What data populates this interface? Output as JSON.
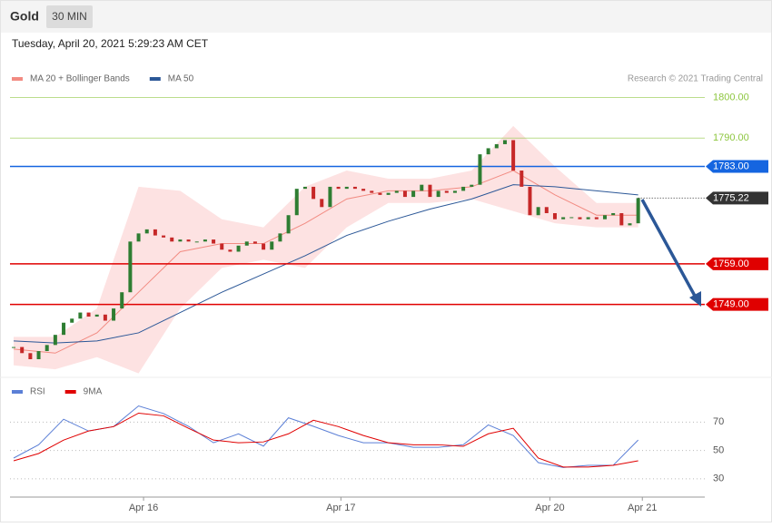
{
  "header": {
    "title": "Gold",
    "timeframe": "30 MIN",
    "datetime": "Tuesday, April 20, 2021 5:29:23 AM CET",
    "credit": "Research © 2021 Trading Central"
  },
  "chart_data": [
    {
      "type": "candlestick",
      "values": [
        1738.5,
        1737,
        1735.5,
        1737.5,
        1739,
        1741.5,
        1744.5,
        1745.5,
        1747,
        1746,
        1746.5,
        1745,
        1748,
        1752,
        1764.5,
        1766.5,
        1767.5,
        1766,
        1765.5,
        1764.5,
        1765,
        1764.5,
        1764.5,
        1765,
        1764,
        1762.5,
        1762,
        1763.5,
        1764.5,
        1764,
        1762.5,
        1764.5,
        1766.5,
        1771,
        1777.5,
        1778,
        1775,
        1773,
        1778,
        1777.5,
        1778,
        1777.5,
        1777,
        1776.5,
        1776,
        1776.5,
        1777,
        1775.5,
        1777,
        1778.5,
        1775.5,
        1777,
        1776.5,
        1777,
        1778,
        1778.5,
        1786,
        1787.5,
        1788.5,
        1789.5,
        1782,
        1778,
        1771,
        1773,
        1771.5,
        1770,
        1770.5,
        1770.5,
        1770,
        1770.5,
        1770,
        1771,
        1771.5,
        1768.5,
        1769,
        1775.22
      ],
      "up_color": "#2e7d32",
      "down_color": "#c62828",
      "series": [
        {
          "name": "MA 20 + Bollinger Bands",
          "color": "#f28b82",
          "band_color": "#fde2e2",
          "x": [
            0,
            5,
            10,
            15,
            20,
            25,
            30,
            35,
            40,
            45,
            50,
            55,
            60,
            65,
            70,
            75
          ],
          "values": [
            1738,
            1737,
            1742,
            1752,
            1762,
            1764,
            1764,
            1769,
            1775,
            1777,
            1777,
            1778,
            1782,
            1776,
            1771,
            1771
          ],
          "upper": [
            1741,
            1741,
            1748,
            1778,
            1777,
            1770,
            1768,
            1778,
            1782,
            1780,
            1780,
            1782,
            1793,
            1783,
            1774,
            1774
          ],
          "lower": [
            1734,
            1733,
            1736,
            1732,
            1748,
            1758,
            1760,
            1758,
            1768,
            1774,
            1774,
            1775,
            1772,
            1769,
            1768,
            1768
          ]
        },
        {
          "name": "MA 50",
          "color": "#2b5797",
          "x": [
            0,
            5,
            10,
            15,
            20,
            25,
            30,
            35,
            40,
            45,
            50,
            55,
            60,
            65,
            70,
            75
          ],
          "values": [
            1740,
            1739.5,
            1740,
            1742,
            1747,
            1752,
            1756.5,
            1761,
            1766,
            1769.5,
            1772.5,
            1775,
            1778.5,
            1778,
            1777,
            1776
          ]
        }
      ],
      "levels": [
        {
          "value": 1800,
          "label": "1800.00",
          "color": "#8dc63f",
          "boxed": false
        },
        {
          "value": 1790,
          "label": "1790.00",
          "color": "#8dc63f",
          "boxed": false
        },
        {
          "value": 1783,
          "label": "1783.00",
          "color": "#1565e0",
          "boxed": true
        },
        {
          "value": 1759,
          "label": "1759.00",
          "color": "#e00000",
          "boxed": true
        },
        {
          "value": 1749,
          "label": "1749.00",
          "color": "#e00000",
          "boxed": true
        }
      ],
      "last": {
        "value": 1775.22,
        "label": "1775.22",
        "color": "#333333"
      },
      "xlim": [
        -0.44,
        83
      ],
      "ylim": [
        1731.7,
        1810.4
      ]
    },
    {
      "type": "line",
      "series": [
        {
          "name": "RSI",
          "color": "#5b7fd6",
          "x": [
            0,
            3,
            6,
            9,
            12,
            15,
            18,
            21,
            24,
            27,
            30,
            33,
            36,
            39,
            42,
            45,
            48,
            51,
            54,
            57,
            60,
            63,
            66,
            69,
            72,
            75
          ],
          "values": [
            44.6,
            54,
            72,
            63.7,
            66.8,
            81.4,
            76,
            67,
            55.4,
            61.7,
            53,
            73,
            67,
            60.5,
            55.4,
            55.4,
            52.2,
            52.2,
            54,
            68,
            60.5,
            41.4,
            38,
            39.5,
            39.5,
            57.3
          ]
        },
        {
          "name": "9MA",
          "color": "#e00000",
          "x": [
            0,
            3,
            6,
            9,
            12,
            15,
            18,
            21,
            24,
            27,
            30,
            33,
            36,
            39,
            42,
            45,
            48,
            51,
            54,
            57,
            60,
            63,
            66,
            69,
            72,
            75
          ],
          "values": [
            42.7,
            47.8,
            57.3,
            63.7,
            66.8,
            76.3,
            74.4,
            65.6,
            57.3,
            55.4,
            56,
            61.7,
            71.3,
            66.8,
            60.5,
            55.4,
            54,
            54,
            52.9,
            61.7,
            65.6,
            44.6,
            38.3,
            38.3,
            39.5,
            42.7
          ]
        }
      ],
      "xlim": [
        -0.44,
        83
      ],
      "ylim": [
        19,
        99
      ],
      "yticks": [
        30,
        50,
        70
      ],
      "xticks": [
        {
          "value": 15.6,
          "label": "Apr 16"
        },
        {
          "value": 39.3,
          "label": "Apr 17"
        },
        {
          "value": 64.4,
          "label": "Apr 20"
        },
        {
          "value": 75.5,
          "label": "Apr 21"
        }
      ]
    }
  ]
}
